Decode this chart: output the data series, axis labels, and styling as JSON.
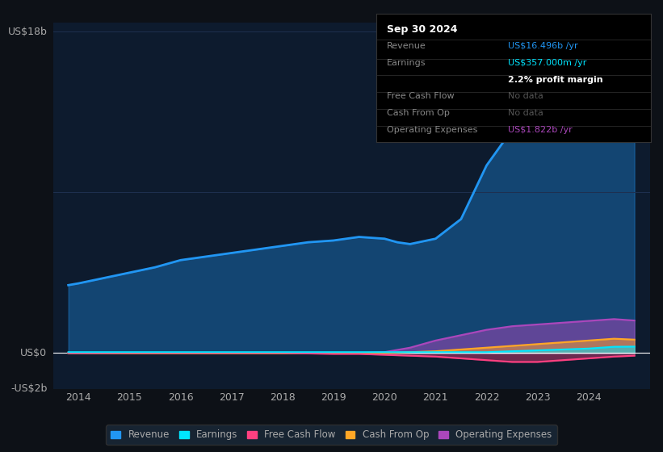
{
  "background_color": "#0d1117",
  "plot_bg_color": "#0d1b2e",
  "grid_color": "#1e3050",
  "text_color": "#aaaaaa",
  "title_color": "#ffffff",
  "ylabel_text": "US$18b",
  "ylabel_zero": "US$0",
  "ylabel_neg": "-US$2b",
  "xlim": [
    2013.5,
    2025.2
  ],
  "ylim": [
    -2.0,
    18.5
  ],
  "xtick_labels": [
    "2014",
    "2015",
    "2016",
    "2017",
    "2018",
    "2019",
    "2020",
    "2021",
    "2022",
    "2023",
    "2024"
  ],
  "xtick_positions": [
    2014,
    2015,
    2016,
    2017,
    2018,
    2019,
    2020,
    2021,
    2022,
    2023,
    2024
  ],
  "revenue_color": "#2196f3",
  "earnings_color": "#00e5ff",
  "fcf_color": "#ff4081",
  "cashfromop_color": "#ffa726",
  "opex_color": "#ab47bc",
  "revenue": {
    "x": [
      2013.8,
      2014,
      2014.5,
      2015,
      2015.5,
      2016,
      2016.5,
      2017,
      2017.5,
      2018,
      2018.5,
      2019,
      2019.5,
      2020,
      2020.25,
      2020.5,
      2021,
      2021.5,
      2022,
      2022.5,
      2023,
      2023.5,
      2024,
      2024.5,
      2024.9
    ],
    "y": [
      3.8,
      3.9,
      4.2,
      4.5,
      4.8,
      5.2,
      5.4,
      5.6,
      5.8,
      6.0,
      6.2,
      6.3,
      6.5,
      6.4,
      6.2,
      6.1,
      6.4,
      7.5,
      10.5,
      12.5,
      14.5,
      13.5,
      14.2,
      16.0,
      16.5
    ]
  },
  "earnings": {
    "x": [
      2013.8,
      2014,
      2015,
      2016,
      2017,
      2018,
      2019,
      2019.5,
      2020,
      2020.5,
      2021,
      2021.5,
      2022,
      2022.5,
      2023,
      2023.5,
      2024,
      2024.5,
      2024.9
    ],
    "y": [
      0.05,
      0.05,
      0.05,
      0.05,
      0.05,
      0.05,
      0.05,
      0.05,
      0.05,
      0.05,
      0.05,
      0.05,
      0.05,
      0.1,
      0.15,
      0.2,
      0.25,
      0.35,
      0.36
    ]
  },
  "fcf": {
    "x": [
      2013.8,
      2014,
      2015,
      2016,
      2017,
      2018,
      2019,
      2019.5,
      2020,
      2020.5,
      2021,
      2021.5,
      2022,
      2022.5,
      2023,
      2023.5,
      2024,
      2024.5,
      2024.9
    ],
    "y": [
      0.0,
      0.0,
      0.0,
      0.0,
      0.0,
      0.0,
      -0.05,
      -0.05,
      -0.1,
      -0.15,
      -0.2,
      -0.3,
      -0.4,
      -0.5,
      -0.5,
      -0.4,
      -0.3,
      -0.2,
      -0.15
    ]
  },
  "cashfromop": {
    "x": [
      2013.8,
      2014,
      2015,
      2016,
      2017,
      2018,
      2019,
      2019.5,
      2020,
      2020.5,
      2021,
      2021.5,
      2022,
      2022.5,
      2023,
      2023.5,
      2024,
      2024.5,
      2024.9
    ],
    "y": [
      0.0,
      0.0,
      -0.02,
      -0.02,
      -0.02,
      -0.02,
      0.0,
      0.0,
      0.0,
      0.05,
      0.1,
      0.2,
      0.3,
      0.4,
      0.5,
      0.6,
      0.7,
      0.8,
      0.75
    ]
  },
  "opex": {
    "x": [
      2013.8,
      2014,
      2015,
      2016,
      2017,
      2018,
      2019,
      2019.5,
      2020,
      2020.5,
      2021,
      2021.5,
      2022,
      2022.5,
      2023,
      2023.5,
      2024,
      2024.5,
      2024.9
    ],
    "y": [
      0.0,
      0.0,
      0.0,
      0.0,
      0.0,
      0.0,
      0.0,
      0.0,
      0.05,
      0.3,
      0.7,
      1.0,
      1.3,
      1.5,
      1.6,
      1.7,
      1.8,
      1.9,
      1.82
    ]
  },
  "tooltip": {
    "bg": "#000000",
    "border": "#333333",
    "title": "Sep 30 2024",
    "rows": [
      {
        "label": "Revenue",
        "value": "US$16.496b /yr",
        "value_color": "#2196f3",
        "bold": false
      },
      {
        "label": "Earnings",
        "value": "US$357.000m /yr",
        "value_color": "#00e5ff",
        "bold": false
      },
      {
        "label": "",
        "value": "2.2% profit margin",
        "value_color": "#ffffff",
        "bold": true
      },
      {
        "label": "Free Cash Flow",
        "value": "No data",
        "value_color": "#555555",
        "bold": false
      },
      {
        "label": "Cash From Op",
        "value": "No data",
        "value_color": "#555555",
        "bold": false
      },
      {
        "label": "Operating Expenses",
        "value": "US$1.822b /yr",
        "value_color": "#ab47bc",
        "bold": false
      }
    ]
  },
  "legend_items": [
    {
      "label": "Revenue",
      "color": "#2196f3"
    },
    {
      "label": "Earnings",
      "color": "#00e5ff"
    },
    {
      "label": "Free Cash Flow",
      "color": "#ff4081"
    },
    {
      "label": "Cash From Op",
      "color": "#ffa726"
    },
    {
      "label": "Operating Expenses",
      "color": "#ab47bc"
    }
  ]
}
